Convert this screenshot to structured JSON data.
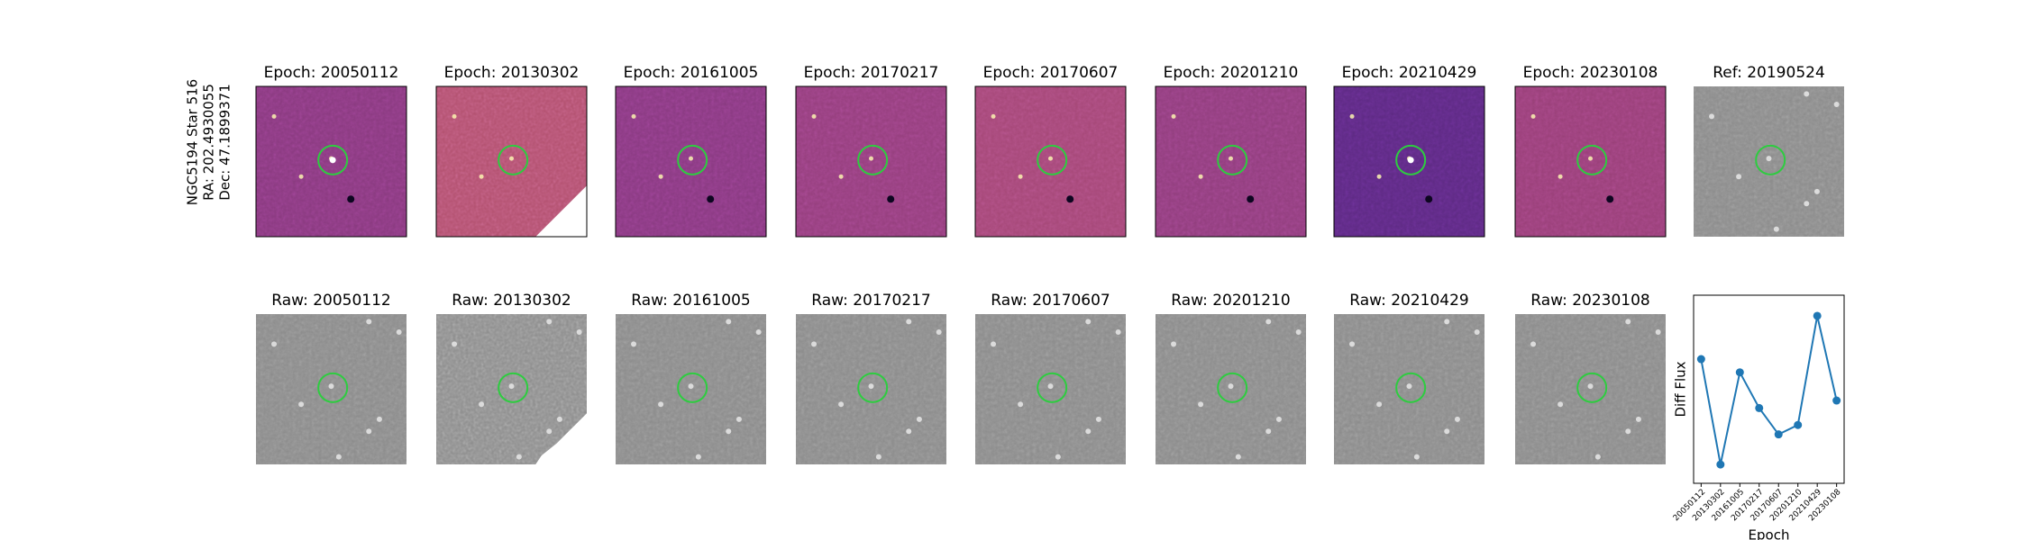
{
  "figure": {
    "side_label": [
      "NGC5194 Star 516",
      "RA: 202.4930055",
      "Dec: 47.1899371"
    ],
    "epoch_panels": [
      "Epoch: 20050112",
      "Epoch: 20130302",
      "Epoch: 20161005",
      "Epoch: 20170217",
      "Epoch: 20170607",
      "Epoch: 20201210",
      "Epoch: 20210429",
      "Epoch: 20230108"
    ],
    "ref_panel": "Ref: 20190524",
    "raw_panels": [
      "Raw: 20050112",
      "Raw: 20130302",
      "Raw: 20161005",
      "Raw: 20170217",
      "Raw: 20170607",
      "Raw: 20201210",
      "Raw: 20210429",
      "Raw: 20230108"
    ]
  },
  "chart_data": {
    "type": "line",
    "categories": [
      "20050112",
      "20130302",
      "20161005",
      "20170217",
      "20170607",
      "20201210",
      "20210429",
      "20230108"
    ],
    "values": [
      0.66,
      0.1,
      0.59,
      0.4,
      0.26,
      0.31,
      0.89,
      0.44
    ],
    "ylim": [
      0,
      1
    ],
    "xlabel": "Epoch",
    "ylabel": "Diff Flux",
    "color": "#1f77b4"
  }
}
